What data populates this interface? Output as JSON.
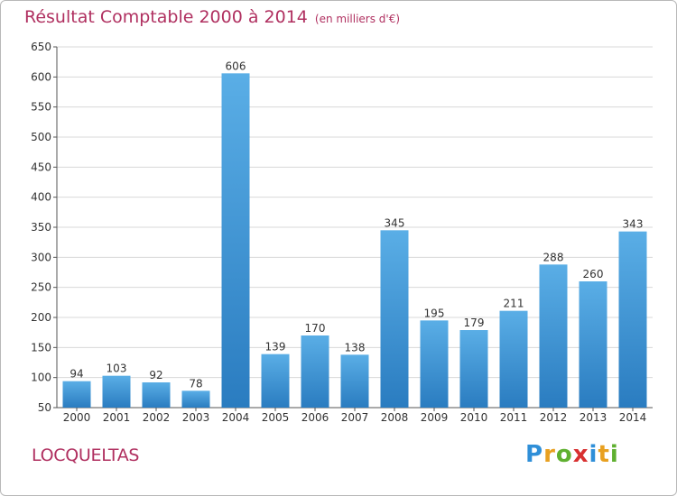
{
  "chart_data": {
    "type": "bar",
    "title": "Résultat Comptable 2000 à 2014",
    "subtitle": "(en milliers d'€)",
    "categories": [
      "2000",
      "2001",
      "2002",
      "2003",
      "2004",
      "2005",
      "2006",
      "2007",
      "2008",
      "2009",
      "2010",
      "2011",
      "2012",
      "2013",
      "2014"
    ],
    "values": [
      94,
      103,
      92,
      78,
      606,
      139,
      170,
      138,
      345,
      195,
      179,
      211,
      288,
      260,
      343
    ],
    "ylim": [
      50,
      650
    ],
    "yticks": [
      50,
      100,
      150,
      200,
      250,
      300,
      350,
      400,
      450,
      500,
      550,
      600,
      650
    ],
    "xlabel": "",
    "ylabel": "",
    "grid": true,
    "colors": {
      "bar_top": "#5aaee6",
      "bar_bottom": "#2a7cc0",
      "grid": "#d8d8d8",
      "title": "#b03060"
    }
  },
  "location": "LOCQUELTAS",
  "brand": {
    "letters": [
      "P",
      "r",
      "o",
      "x",
      "i",
      "t",
      "i"
    ]
  }
}
